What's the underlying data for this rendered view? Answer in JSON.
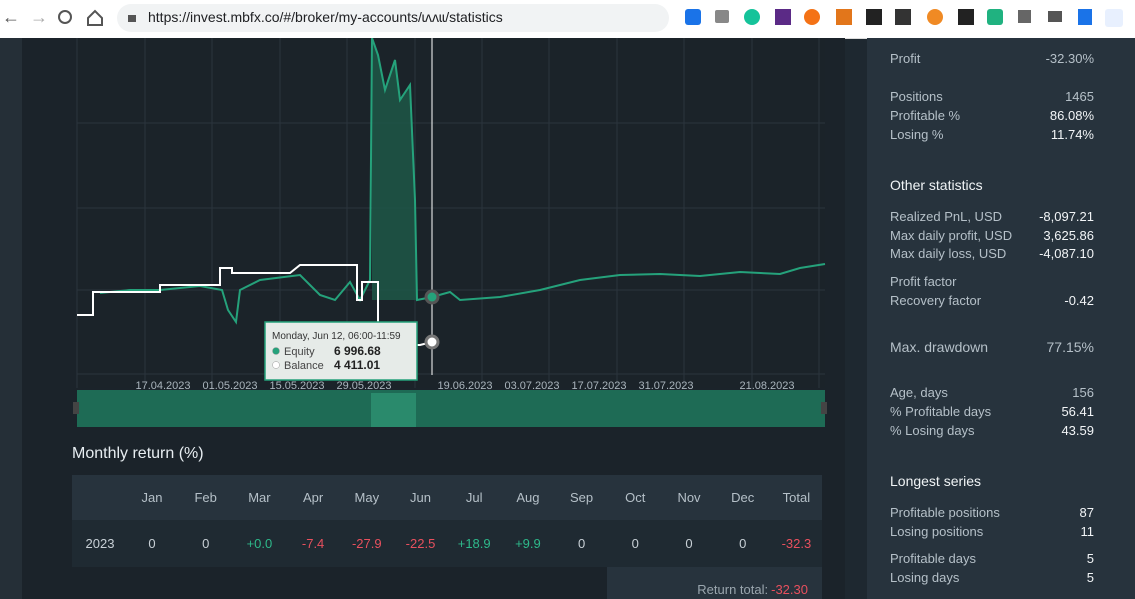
{
  "browser": {
    "url": "https://invest.mbfx.co/#/broker/my-accounts/ɩʌʌɩɩ/statistics"
  },
  "chart": {
    "x_labels": [
      "17.04.2023",
      "01.05.2023",
      "15.05.2023",
      "29.05.2023",
      "19.06.2023",
      "03.07.2023",
      "17.07.2023",
      "31.07.2023",
      "21.08.2023"
    ],
    "tooltip": {
      "date": "Monday, Jun 12, 06:00-11:59",
      "items": [
        {
          "name": "Equity",
          "value": "6 996.68"
        },
        {
          "name": "Balance",
          "value": "4 411.01"
        }
      ]
    }
  },
  "monthly": {
    "title": "Monthly return (%)",
    "columns": [
      "Jan",
      "Feb",
      "Mar",
      "Apr",
      "May",
      "Jun",
      "Jul",
      "Aug",
      "Sep",
      "Oct",
      "Nov",
      "Dec",
      "Total"
    ],
    "rows": [
      {
        "year": "2023",
        "values": [
          "0",
          "0",
          "+0.0",
          "-7.4",
          "-27.9",
          "-22.5",
          "+18.9",
          "+9.9",
          "0",
          "0",
          "0",
          "0",
          "-32.3"
        ]
      }
    ],
    "return_total": {
      "label": "Return total:",
      "value": "-32.30"
    }
  },
  "stats": {
    "headings": [
      "Other statistics",
      "Longest series"
    ],
    "rows": [
      {
        "label": "Profit",
        "value": "-32.30%"
      },
      {
        "label": "Positions",
        "value": "1465"
      },
      {
        "label": "Profitable %",
        "value": "86.08%"
      },
      {
        "label": "Losing %",
        "value": "11.74%"
      },
      {
        "label": "Realized PnL, USD",
        "value": "-8,097.21"
      },
      {
        "label": "Max daily profit, USD",
        "value": "3,625.86"
      },
      {
        "label": "Max daily loss, USD",
        "value": "-4,087.10"
      },
      {
        "label": "Profit factor"
      },
      {
        "label": "Recovery factor",
        "value": "-0.42"
      },
      {
        "label": "Max. drawdown",
        "value": "77.15%"
      },
      {
        "label": "Age, days",
        "value": "156"
      },
      {
        "label": "% Profitable days",
        "value": "56.41"
      },
      {
        "label": "% Losing days",
        "value": "43.59"
      },
      {
        "label": "Profitable positions",
        "value": "87"
      },
      {
        "label": "Losing positions",
        "value": "11"
      },
      {
        "label": "Profitable days",
        "value": "5"
      },
      {
        "label": "Losing days",
        "value": "5"
      }
    ]
  }
}
